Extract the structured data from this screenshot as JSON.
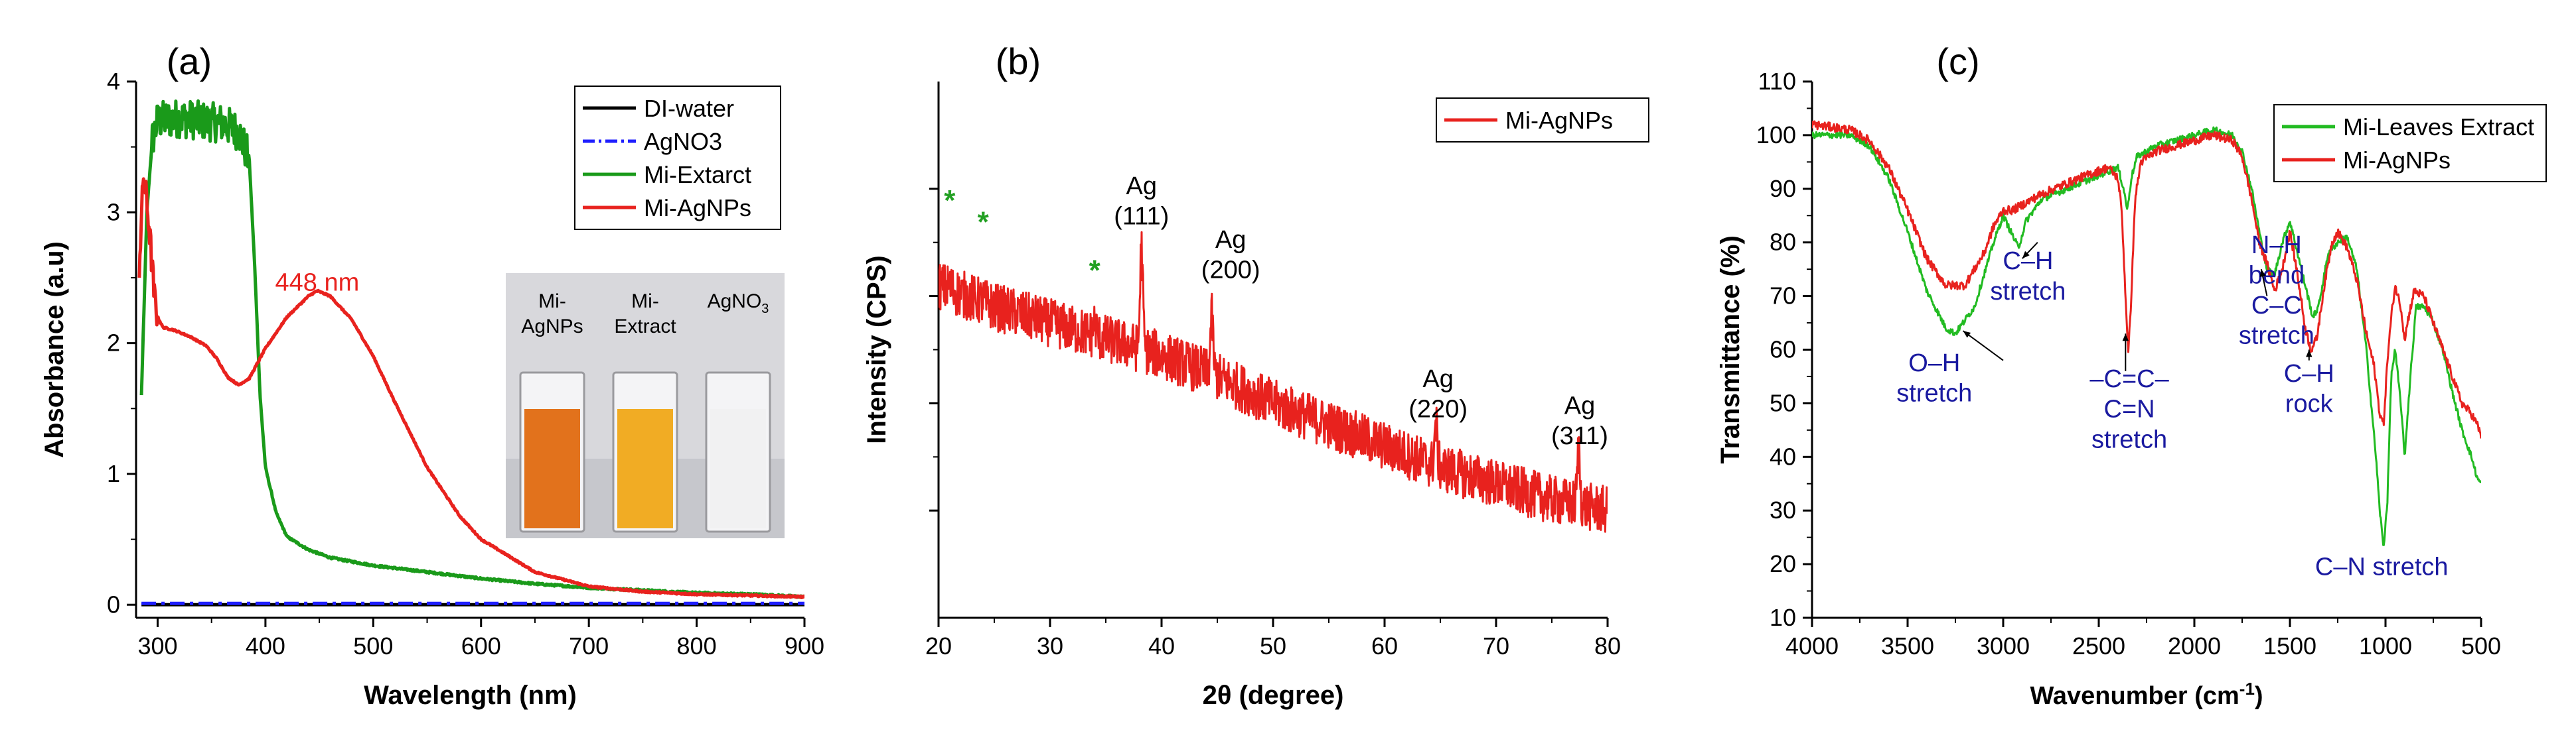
{
  "chart_data": [
    {
      "type": "line",
      "panel_label": "(a)",
      "xlabel": "Wavelength (nm)",
      "ylabel": "Absorbance (a.u)",
      "xlim": [
        280,
        900
      ],
      "ylim": [
        -0.1,
        4
      ],
      "xticks": [
        300,
        400,
        500,
        600,
        700,
        800,
        900
      ],
      "yticks": [
        0,
        1,
        2,
        3,
        4
      ],
      "legend": {
        "position": "top-right",
        "entries": [
          "DI-water",
          "AgNO3",
          "Mi-Extarct",
          "Mi-AgNPs"
        ]
      },
      "series": [
        {
          "name": "DI-water",
          "color": "#000000",
          "style": "solid",
          "x": [
            285,
            900
          ],
          "y": [
            0.0,
            0.0
          ]
        },
        {
          "name": "AgNO3",
          "color": "#1f1fff",
          "style": "dashdot",
          "x": [
            285,
            900
          ],
          "y": [
            0.01,
            0.01
          ]
        },
        {
          "name": "Mi-Extarct",
          "color": "#1a9a1a",
          "style": "solid",
          "noise": 0.15,
          "noise_range": [
            295,
            385
          ],
          "x": [
            285,
            290,
            295,
            300,
            320,
            340,
            360,
            375,
            385,
            390,
            395,
            400,
            410,
            420,
            440,
            460,
            480,
            500,
            550,
            600,
            650,
            700,
            750,
            800,
            850,
            900
          ],
          "y": [
            1.6,
            3.0,
            3.55,
            3.7,
            3.72,
            3.7,
            3.68,
            3.62,
            3.4,
            2.6,
            1.6,
            1.05,
            0.7,
            0.52,
            0.42,
            0.36,
            0.33,
            0.3,
            0.25,
            0.2,
            0.16,
            0.13,
            0.11,
            0.09,
            0.08,
            0.06
          ]
        },
        {
          "name": "Mi-AgNPs",
          "color": "#e8221e",
          "style": "solid",
          "noise": 0.12,
          "noise_range": [
            283,
            300
          ],
          "x": [
            283,
            287,
            292,
            297,
            300,
            305,
            315,
            330,
            345,
            355,
            365,
            375,
            385,
            400,
            420,
            440,
            448,
            460,
            480,
            500,
            520,
            550,
            580,
            600,
            650,
            700,
            750,
            800,
            850,
            900
          ],
          "y": [
            2.6,
            3.3,
            2.9,
            2.35,
            2.2,
            2.12,
            2.1,
            2.05,
            1.98,
            1.88,
            1.74,
            1.68,
            1.73,
            1.96,
            2.2,
            2.36,
            2.4,
            2.36,
            2.18,
            1.9,
            1.55,
            1.05,
            0.68,
            0.5,
            0.25,
            0.14,
            0.1,
            0.08,
            0.07,
            0.06
          ]
        }
      ],
      "annotations": [
        {
          "text": "448 nm",
          "color": "#e8221e",
          "x": 448,
          "y": 2.4
        }
      ],
      "inset": {
        "labels": [
          [
            "Mi-",
            "AgNPs"
          ],
          [
            "Mi-",
            "Extract"
          ],
          [
            "AgNO",
            "3"
          ]
        ],
        "colors": [
          "#e06a10",
          "#f0a818",
          "#eeeeee"
        ]
      }
    },
    {
      "type": "line",
      "panel_label": "(b)",
      "xlabel": "2θ (degree)",
      "ylabel": "Intensity (CPS)",
      "xlim": [
        20,
        80
      ],
      "ylim": [
        0,
        100
      ],
      "xticks": [
        20,
        30,
        40,
        50,
        60,
        70,
        80
      ],
      "yticks": [
        20,
        40,
        60,
        80
      ],
      "ytick_labels_shown": false,
      "legend": {
        "position": "top-right",
        "entries": [
          "Mi-AgNPs"
        ]
      },
      "series": [
        {
          "name": "Mi-AgNPs",
          "color": "#e8221e",
          "style": "solid",
          "noise": 4.5,
          "x": [
            20,
            25,
            30,
            35,
            40,
            45,
            50,
            55,
            60,
            65,
            70,
            75,
            80
          ],
          "y": [
            62,
            58,
            55,
            52,
            49,
            45,
            40,
            36,
            32,
            28,
            25,
            22,
            20
          ],
          "peaks": [
            {
              "x": 38.2,
              "y": 69
            },
            {
              "x": 44.5,
              "y": 56
            },
            {
              "x": 64.6,
              "y": 36
            },
            {
              "x": 77.4,
              "y": 31
            },
            {
              "x": 21,
              "y": 62
            },
            {
              "x": 24,
              "y": 59
            },
            {
              "x": 34,
              "y": 55
            }
          ]
        }
      ],
      "annotations": [
        {
          "text": [
            "Ag",
            "(111)"
          ],
          "x": 38.2,
          "y": 79
        },
        {
          "text": [
            "Ag",
            "(200)"
          ],
          "x": 46.2,
          "y": 69
        },
        {
          "text": [
            "Ag",
            "(220)"
          ],
          "x": 64.8,
          "y": 43
        },
        {
          "text": [
            "Ag",
            "(311)"
          ],
          "x": 77.5,
          "y": 38
        }
      ],
      "markers": [
        {
          "text": "*",
          "color": "#22a022",
          "x": 21,
          "y": 76
        },
        {
          "text": "*",
          "color": "#22a022",
          "x": 24,
          "y": 72
        },
        {
          "text": "*",
          "color": "#22a022",
          "x": 34,
          "y": 63
        }
      ]
    },
    {
      "type": "line",
      "panel_label": "(c)",
      "xlabel": "Wavenumber (cm",
      "xlabel_sup": "-1",
      "xlabel_end": ")",
      "ylabel": "Transmittance (%)",
      "xlim": [
        4000,
        500
      ],
      "ylim": [
        10,
        110
      ],
      "xticks": [
        4000,
        3500,
        3000,
        2500,
        2000,
        1500,
        1000,
        500
      ],
      "yticks": [
        10,
        20,
        30,
        40,
        50,
        60,
        70,
        80,
        90,
        100,
        110
      ],
      "legend": {
        "position": "top-right",
        "entries": [
          "Mi-Leaves Extract",
          "Mi-AgNPs"
        ]
      },
      "series": [
        {
          "name": "Mi-Leaves Extract",
          "color": "#22bb22",
          "style": "solid",
          "noise": 0.6,
          "x": [
            4000,
            3800,
            3700,
            3600,
            3500,
            3400,
            3300,
            3250,
            3150,
            3050,
            3000,
            2960,
            2920,
            2880,
            2800,
            2600,
            2400,
            2370,
            2350,
            2330,
            2300,
            2200,
            2100,
            2000,
            1900,
            1800,
            1750,
            1700,
            1650,
            1620,
            1580,
            1540,
            1500,
            1460,
            1420,
            1380,
            1350,
            1300,
            1250,
            1200,
            1150,
            1100,
            1080,
            1050,
            1030,
            1010,
            990,
            970,
            950,
            920,
            900,
            870,
            840,
            800,
            760,
            700,
            650,
            600,
            550,
            520,
            500
          ],
          "y": [
            100,
            100,
            98,
            92,
            82,
            71,
            64,
            63,
            68,
            80,
            85,
            82,
            79,
            84,
            88,
            91,
            94,
            90,
            86,
            92,
            96,
            98,
            99,
            100,
            101,
            100,
            97,
            90,
            80,
            75,
            74,
            80,
            84,
            78,
            72,
            66,
            68,
            78,
            80,
            81,
            75,
            60,
            52,
            40,
            30,
            23,
            32,
            55,
            60,
            50,
            40,
            55,
            68,
            68,
            66,
            60,
            52,
            45,
            40,
            36,
            35
          ]
        },
        {
          "name": "Mi-AgNPs",
          "color": "#e8221e",
          "style": "solid",
          "noise": 0.8,
          "x": [
            4000,
            3800,
            3700,
            3600,
            3500,
            3400,
            3300,
            3200,
            3100,
            3050,
            3000,
            2950,
            2900,
            2850,
            2800,
            2600,
            2450,
            2400,
            2380,
            2360,
            2345,
            2330,
            2310,
            2280,
            2200,
            2100,
            2000,
            1900,
            1800,
            1750,
            1700,
            1660,
            1620,
            1580,
            1540,
            1500,
            1460,
            1420,
            1390,
            1360,
            1320,
            1280,
            1250,
            1200,
            1150,
            1100,
            1060,
            1030,
            1010,
            990,
            970,
            950,
            920,
            900,
            880,
            850,
            800,
            750,
            700,
            650,
            600,
            550,
            520,
            500
          ],
          "y": [
            102,
            101,
            99,
            94,
            86,
            77,
            72,
            72,
            78,
            83,
            86,
            86,
            87,
            88,
            89,
            92,
            94,
            92,
            86,
            70,
            59,
            70,
            88,
            95,
            97,
            98,
            99,
            100,
            99,
            96,
            88,
            80,
            76,
            71,
            75,
            82,
            74,
            64,
            60,
            62,
            72,
            80,
            82,
            79,
            73,
            63,
            57,
            48,
            46,
            58,
            66,
            72,
            68,
            62,
            66,
            71,
            70,
            65,
            60,
            55,
            50,
            48,
            46,
            44
          ]
        }
      ],
      "annotations": [
        {
          "text": [
            "O–H",
            "stretch"
          ],
          "color": "#1a1aa0",
          "x": 3360,
          "y": 56
        },
        {
          "text": [
            "C–H",
            "stretch"
          ],
          "color": "#1a1aa0",
          "x": 2870,
          "y": 75
        },
        {
          "text": [
            "–C=C–",
            "C=N",
            "stretch"
          ],
          "color": "#1a1aa0",
          "x": 2340,
          "y": 53
        },
        {
          "text": [
            "N–H",
            "bend",
            "C–C",
            "stretch"
          ],
          "color": "#1a1aa0",
          "x": 1570,
          "y": 78
        },
        {
          "text": [
            "C–H",
            "rock"
          ],
          "color": "#1a1aa0",
          "x": 1400,
          "y": 54
        },
        {
          "text": [
            "C–N stretch"
          ],
          "color": "#1a1aa0",
          "x": 1020,
          "y": 18
        }
      ]
    }
  ]
}
